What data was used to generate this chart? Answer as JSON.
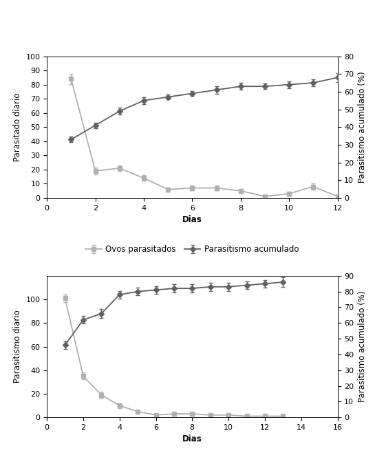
{
  "chart1": {
    "days_sq": [
      1,
      2,
      3,
      4,
      5,
      6,
      7,
      8,
      9,
      10,
      11,
      12
    ],
    "ovos": [
      84,
      19,
      21,
      14,
      6,
      7,
      7,
      5,
      1,
      3,
      8,
      1
    ],
    "ovos_err": [
      3.5,
      2.5,
      2.0,
      2.0,
      1.5,
      1.5,
      1.5,
      1.5,
      0.8,
      1.2,
      2.0,
      0.5
    ],
    "days_di": [
      1,
      2,
      3,
      4,
      5,
      6,
      7,
      8,
      9,
      10,
      11,
      12
    ],
    "acumulado": [
      33,
      41,
      49,
      55,
      57,
      59,
      61,
      63,
      63,
      64,
      65,
      68
    ],
    "acumulado_err": [
      1.5,
      1.5,
      2.0,
      2.0,
      1.5,
      1.5,
      2.0,
      2.0,
      1.5,
      2.0,
      2.0,
      2.5
    ],
    "ylim_left": [
      0,
      100
    ],
    "yticks_left": [
      0,
      10,
      20,
      30,
      40,
      50,
      60,
      70,
      80,
      90,
      100
    ],
    "ylim_right": [
      0,
      80
    ],
    "yticks_right": [
      0,
      10,
      20,
      30,
      40,
      50,
      60,
      70,
      80
    ],
    "xlim": [
      0,
      12
    ],
    "xticks": [
      0,
      2,
      4,
      6,
      8,
      10,
      12
    ],
    "ylabel_left": "Parasitado diario",
    "ylabel_right": "Parasitismo acumulado (%)",
    "xlabel": "Dias"
  },
  "chart2": {
    "days_sq": [
      1,
      2,
      3,
      4,
      5,
      6,
      7,
      8,
      9,
      10,
      11,
      12,
      13
    ],
    "ovos": [
      101,
      35,
      19,
      10,
      5,
      2,
      3,
      3,
      2,
      2,
      1,
      1,
      1
    ],
    "ovos_err": [
      3.0,
      3.0,
      2.5,
      2.0,
      1.5,
      1.0,
      1.0,
      1.0,
      0.8,
      0.8,
      0.5,
      0.5,
      0.5
    ],
    "days_di": [
      1,
      2,
      3,
      4,
      5,
      6,
      7,
      8,
      9,
      10,
      11,
      12,
      13
    ],
    "acumulado": [
      46,
      62,
      66,
      78,
      80,
      81,
      82,
      82,
      83,
      83,
      84,
      85,
      86
    ],
    "acumulado_err": [
      2.5,
      2.5,
      3.0,
      2.5,
      2.5,
      2.5,
      2.5,
      2.5,
      2.5,
      2.5,
      2.5,
      2.5,
      3.0
    ],
    "ylim_left": [
      0,
      120
    ],
    "yticks_left": [
      0,
      20,
      40,
      60,
      80,
      100
    ],
    "ylim_right": [
      0,
      90
    ],
    "yticks_right": [
      0,
      10,
      20,
      30,
      40,
      50,
      60,
      70,
      80,
      90
    ],
    "xlim": [
      0,
      16
    ],
    "xticks": [
      0,
      2,
      4,
      6,
      8,
      10,
      12,
      14,
      16
    ],
    "ylabel_left": "Parasitismo diario",
    "ylabel_right": "Parasitismo acumulado (%)",
    "xlabel": "Dias"
  },
  "legend_labels": [
    "Ovos parasitados",
    "Parasitismo acumulado"
  ],
  "color_sq": "#b0b0b0",
  "color_di": "#606060",
  "marker_sq": "s",
  "marker_di": "D",
  "linewidth": 1.3,
  "markersize": 4.5,
  "capsize": 2.5,
  "elinewidth": 0.9,
  "fontsize_labels": 8.5,
  "fontsize_ticks": 8,
  "fontsize_legend": 8.5
}
